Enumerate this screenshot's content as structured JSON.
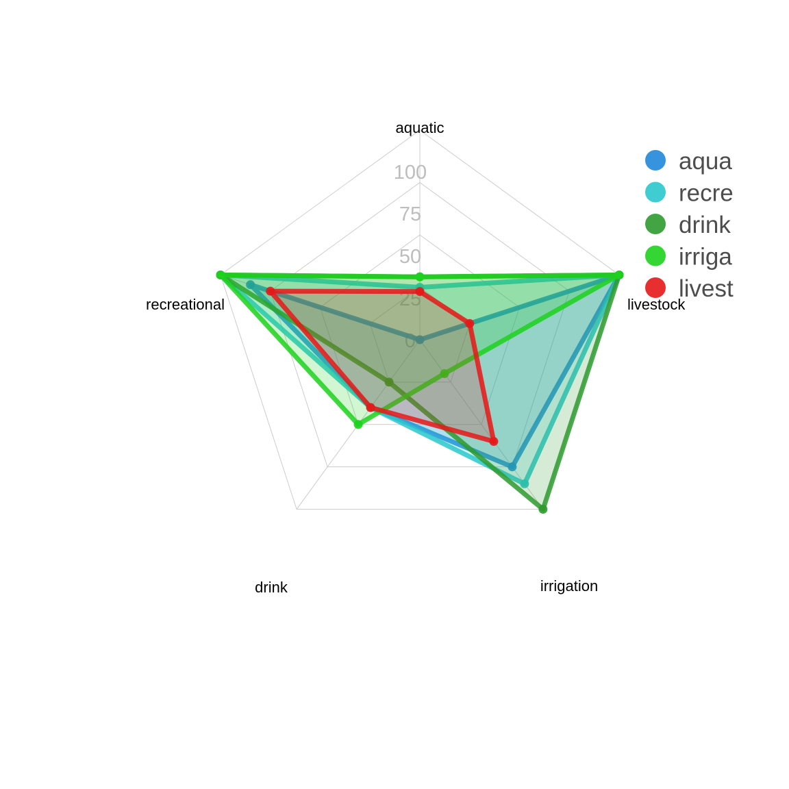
{
  "chart_data": {
    "type": "radar",
    "axes": [
      "aquatic",
      "livestock",
      "irrigation",
      "drink",
      "recreational"
    ],
    "rlim": [
      0,
      100
    ],
    "ticks": [
      0,
      25,
      50,
      75,
      100
    ],
    "tick_labels": [
      "0",
      "25",
      "50",
      "75",
      "100"
    ],
    "grid": true,
    "legend_position": "right",
    "series": [
      {
        "name": "aquatic",
        "legend_text": "aqua",
        "color": "#1f88d9",
        "values": [
          0,
          100,
          75,
          40,
          85
        ]
      },
      {
        "name": "recreational",
        "legend_text": "recre",
        "color": "#2ac8cc",
        "values": [
          25,
          100,
          85,
          40,
          100
        ]
      },
      {
        "name": "drink",
        "legend_text": "drink",
        "color": "#2e9a2e",
        "values": [
          30,
          100,
          100,
          25,
          100
        ]
      },
      {
        "name": "irrigation",
        "legend_text": "irriga",
        "color": "#1dd11d",
        "values": [
          30,
          100,
          20,
          50,
          100
        ]
      },
      {
        "name": "livestock",
        "legend_text": "livest",
        "color": "#e61818",
        "values": [
          23,
          25,
          60,
          40,
          75
        ]
      }
    ]
  }
}
